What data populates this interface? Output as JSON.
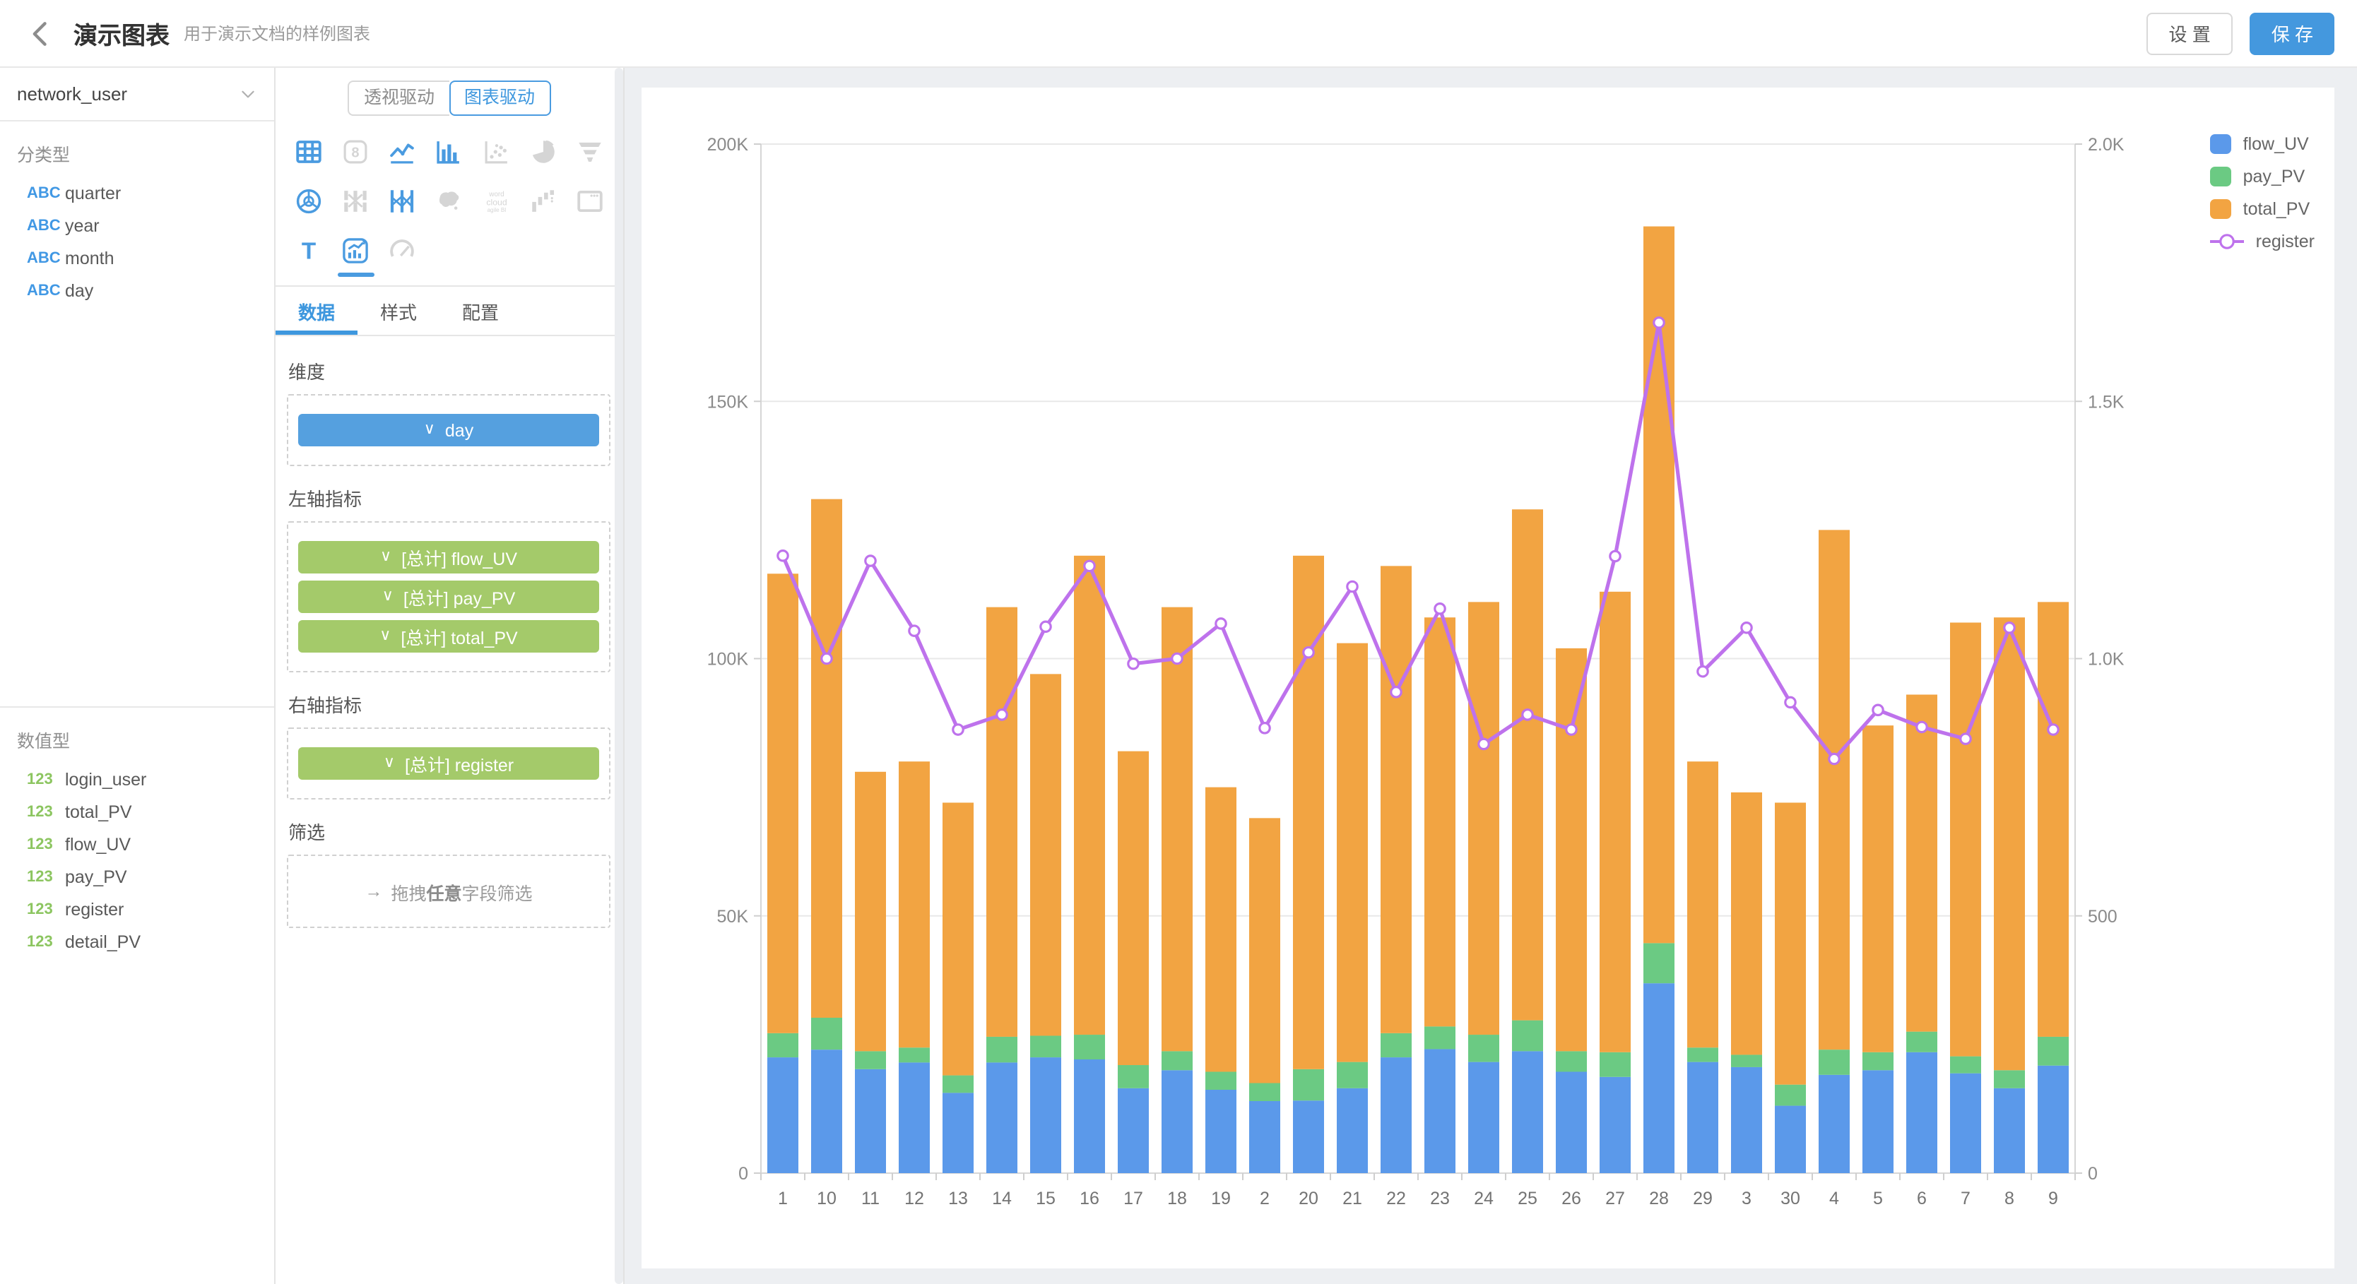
{
  "header": {
    "title": "演示图表",
    "subtitle": "用于演示文档的样例图表",
    "settings_label": "设 置",
    "save_label": "保 存"
  },
  "sidebar": {
    "source_select": {
      "value": "network_user"
    },
    "category_section": {
      "label": "分类型",
      "type_badge": "ABC",
      "items": [
        "quarter",
        "year",
        "month",
        "day"
      ]
    },
    "numeric_section": {
      "label": "数值型",
      "type_badge": "123",
      "items": [
        "login_user",
        "total_PV",
        "flow_UV",
        "pay_PV",
        "register",
        "detail_PV"
      ]
    }
  },
  "panel": {
    "mode_toggle": {
      "options": [
        "透视驱动",
        "图表驱动"
      ],
      "active": "图表驱动"
    },
    "chart_types": [
      {
        "name": "table",
        "state": "enabled"
      },
      {
        "name": "kpi-number",
        "state": "disabled"
      },
      {
        "name": "line-chart",
        "state": "enabled"
      },
      {
        "name": "bar-chart",
        "state": "enabled"
      },
      {
        "name": "scatter",
        "state": "disabled"
      },
      {
        "name": "pie",
        "state": "disabled"
      },
      {
        "name": "funnel",
        "state": "disabled"
      },
      {
        "name": "radar",
        "state": "enabled"
      },
      {
        "name": "sankey",
        "state": "disabled"
      },
      {
        "name": "parallel",
        "state": "enabled"
      },
      {
        "name": "map",
        "state": "disabled"
      },
      {
        "name": "word-cloud",
        "state": "disabled"
      },
      {
        "name": "waterfall",
        "state": "disabled"
      },
      {
        "name": "iframe",
        "state": "disabled"
      },
      {
        "name": "text",
        "state": "enabled"
      },
      {
        "name": "dual-axis",
        "state": "selected"
      },
      {
        "name": "gauge",
        "state": "disabled"
      }
    ],
    "tabs": {
      "items": [
        "数据",
        "样式",
        "配置"
      ],
      "active": "数据"
    },
    "sections": {
      "dimension": {
        "label": "维度",
        "chips": [
          {
            "label": "day",
            "color": "blue"
          }
        ]
      },
      "left_axis": {
        "label": "左轴指标",
        "chips": [
          {
            "label": "[总计] flow_UV",
            "color": "green"
          },
          {
            "label": "[总计] pay_PV",
            "color": "green"
          },
          {
            "label": "[总计] total_PV",
            "color": "green"
          }
        ]
      },
      "right_axis": {
        "label": "右轴指标",
        "chips": [
          {
            "label": "[总计] register",
            "color": "green"
          }
        ]
      },
      "filter": {
        "label": "筛选",
        "arrow": "→",
        "text_before": "拖拽",
        "text_bold": "任意",
        "text_after": "字段筛选"
      }
    }
  },
  "colors": {
    "primary": "#4498DE",
    "icon_active": "#4A9BE0",
    "icon_disabled": "#D5D5D5",
    "tab_active": "#3E97DE",
    "chip_blue": "#55A0DF",
    "chip_green": "#A4CA6A",
    "badge_blue": "#4198E4",
    "badge_green": "#8CC560",
    "main_bg": "#EDEFF2"
  },
  "chart_data": {
    "type": "bar",
    "subtype": "stacked-bars-with-line-dual-axis",
    "title": "",
    "xlabel": "",
    "ylabel": "",
    "grid": true,
    "legend_position": "top-right",
    "categories": [
      "1",
      "10",
      "11",
      "12",
      "13",
      "14",
      "15",
      "16",
      "17",
      "18",
      "19",
      "2",
      "20",
      "21",
      "22",
      "23",
      "24",
      "25",
      "26",
      "27",
      "28",
      "29",
      "3",
      "30",
      "4",
      "5",
      "6",
      "7",
      "8",
      "9"
    ],
    "left_axis": {
      "min": 0,
      "max": 200000,
      "tick_labels": [
        "0",
        "50K",
        "100K",
        "150K",
        "200K"
      ]
    },
    "right_axis": {
      "min": 0,
      "max": 2000,
      "tick_labels": [
        "0",
        "500",
        "1.0K",
        "1.5K",
        "2.0K"
      ]
    },
    "series": [
      {
        "name": "flow_UV",
        "type": "bar",
        "stack": true,
        "axis": "left",
        "color": "#5B99EA",
        "values": [
          22500,
          24000,
          20200,
          21500,
          15600,
          21500,
          22500,
          22100,
          16500,
          20000,
          16200,
          14000,
          14100,
          16500,
          22500,
          24100,
          21600,
          23700,
          19700,
          18700,
          36900,
          21600,
          20600,
          13100,
          19100,
          20000,
          23500,
          19400,
          16500,
          20900
        ]
      },
      {
        "name": "pay_PV",
        "type": "bar",
        "stack": true,
        "axis": "left",
        "color": "#6BCA83",
        "values": [
          4700,
          6200,
          3500,
          2900,
          3400,
          5000,
          4200,
          4800,
          4500,
          3700,
          3500,
          3500,
          6100,
          5100,
          4700,
          4400,
          5300,
          6000,
          4000,
          4800,
          7800,
          2800,
          2400,
          4100,
          4900,
          3500,
          4000,
          3300,
          3500,
          5600
        ]
      },
      {
        "name": "total_PV",
        "type": "bar",
        "stack": true,
        "axis": "left",
        "color": "#F2A442",
        "values": [
          89300,
          100800,
          54300,
          55600,
          53000,
          83500,
          70300,
          93100,
          61000,
          86300,
          55300,
          51500,
          99800,
          81400,
          90800,
          79500,
          84100,
          99300,
          78300,
          89500,
          139300,
          55600,
          51000,
          54800,
          101000,
          63500,
          65500,
          84300,
          88000,
          84500
        ]
      },
      {
        "name": "register",
        "type": "line",
        "stack": false,
        "axis": "right",
        "color": "#BE72EC",
        "values": [
          1200,
          1000,
          1190,
          1054,
          862,
          891,
          1062,
          1180,
          990,
          1000,
          1068,
          865,
          1012,
          1140,
          935,
          1097,
          834,
          891,
          862,
          1199,
          1653,
          975,
          1060,
          915,
          805,
          900,
          867,
          844,
          1060,
          862
        ]
      }
    ],
    "legend": {
      "items": [
        "flow_UV",
        "pay_PV",
        "total_PV",
        "register"
      ]
    }
  }
}
